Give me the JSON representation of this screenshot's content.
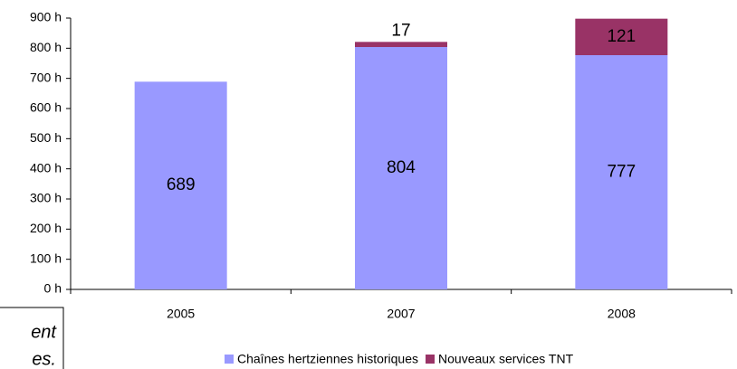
{
  "chart_data": {
    "type": "bar",
    "stacked": true,
    "categories": [
      "2005",
      "2007",
      "2008"
    ],
    "series": [
      {
        "name": "Chaînes hertziennes historiques",
        "color": "#9999ff",
        "values": [
          689,
          804,
          777
        ]
      },
      {
        "name": "Nouveaux services TNT",
        "color": "#993366",
        "values": [
          0,
          17,
          121
        ]
      }
    ],
    "ylim": [
      0,
      900
    ],
    "yticks": [
      {
        "value": 0,
        "label": "0 h"
      },
      {
        "value": 100,
        "label": "100 h"
      },
      {
        "value": 200,
        "label": "200 h"
      },
      {
        "value": 300,
        "label": "300 h"
      },
      {
        "value": 400,
        "label": "400 h"
      },
      {
        "value": 500,
        "label": "500 h"
      },
      {
        "value": 600,
        "label": "600 h"
      },
      {
        "value": 700,
        "label": "700 h"
      },
      {
        "value": 800,
        "label": "800 h"
      },
      {
        "value": 900,
        "label": "900 h"
      }
    ],
    "legend": "bottom",
    "annotations": [
      "ent",
      "es."
    ]
  }
}
